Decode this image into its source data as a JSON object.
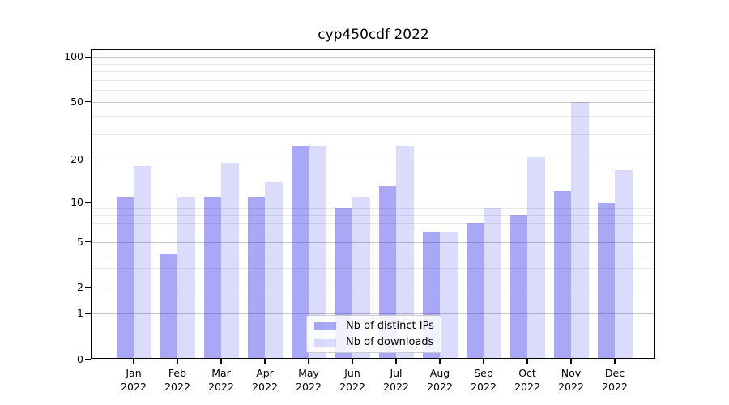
{
  "title": "cyp450cdf 2022",
  "chart_data": {
    "type": "bar",
    "title": "cyp450cdf 2022",
    "months": [
      "Jan",
      "Feb",
      "Mar",
      "Apr",
      "May",
      "Jun",
      "Jul",
      "Aug",
      "Sep",
      "Oct",
      "Nov",
      "Dec"
    ],
    "year": "2022",
    "series": [
      {
        "name": "Nb of distinct IPs",
        "color": "rgba(62,62,235,0.45)",
        "color_hex": "#a8a8f6",
        "values": [
          11,
          4,
          11,
          11,
          25,
          9,
          13,
          6,
          7,
          8,
          12,
          10
        ]
      },
      {
        "name": "Nb of downloads",
        "color": "rgba(62,62,235,0.19)",
        "color_hex": "#dadaf9",
        "values": [
          18,
          11,
          19,
          14,
          25,
          11,
          25,
          6,
          9,
          21,
          50,
          17
        ]
      }
    ],
    "y_ticks": [
      100,
      50,
      20,
      10,
      5,
      2,
      1,
      0
    ],
    "y_minor_gridlines": [
      3,
      4,
      6,
      7,
      8,
      9,
      30,
      40,
      60,
      70,
      80,
      90
    ],
    "scale": "log10(1+y)",
    "ylim": [
      0,
      110
    ],
    "grid": true,
    "legend_position": "lower center"
  }
}
